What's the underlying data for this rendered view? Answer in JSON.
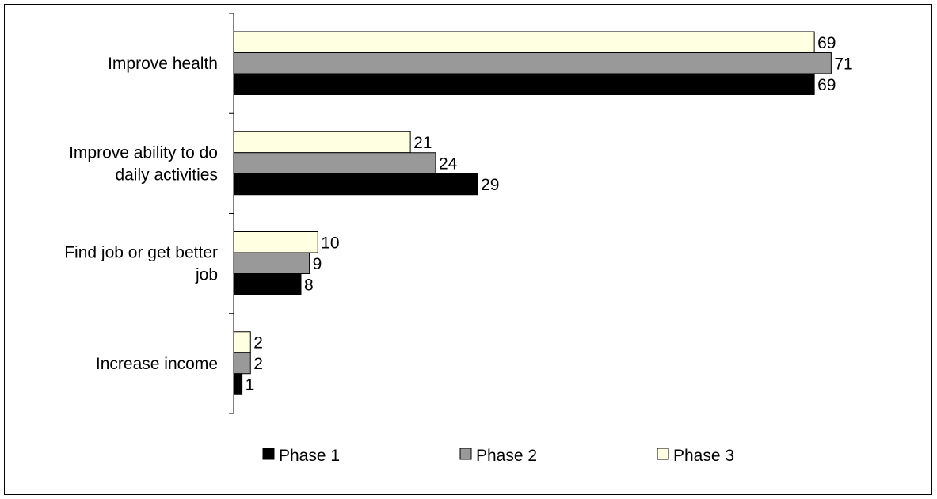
{
  "chart_data": {
    "type": "bar",
    "orientation": "horizontal",
    "categories": [
      [
        "Improve health"
      ],
      [
        "Improve ability to do",
        "daily activities"
      ],
      [
        "Find job or get better",
        "job"
      ],
      [
        "Increase income"
      ]
    ],
    "series": [
      {
        "name": "Phase 3",
        "color": "#FFFFE1",
        "values": [
          69,
          21,
          10,
          2
        ]
      },
      {
        "name": "Phase 2",
        "color": "#999999",
        "values": [
          71,
          24,
          9,
          2
        ]
      },
      {
        "name": "Phase 1",
        "color": "#000000",
        "values": [
          69,
          29,
          8,
          1
        ]
      }
    ],
    "legend": {
      "placement": "bottom",
      "items": [
        {
          "name": "Phase 1",
          "color": "#000000"
        },
        {
          "name": "Phase 2",
          "color": "#999999"
        },
        {
          "name": "Phase 3",
          "color": "#FFFFE1"
        }
      ]
    },
    "xlim": [
      0,
      80
    ],
    "grid": false,
    "title": "",
    "xlabel": "",
    "ylabel": ""
  }
}
